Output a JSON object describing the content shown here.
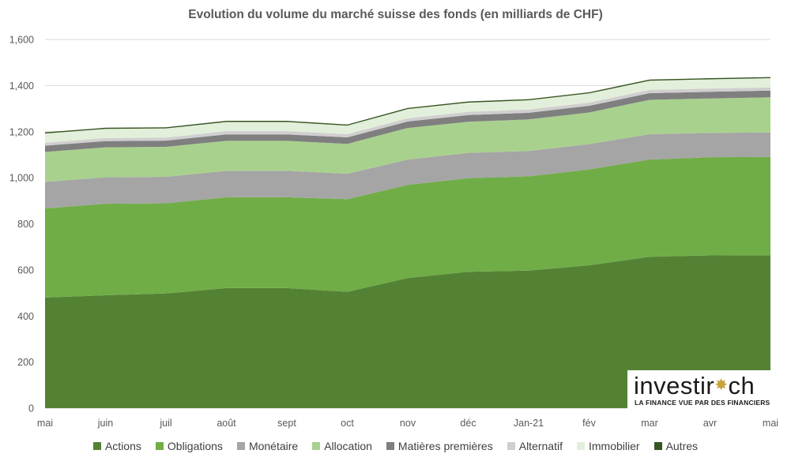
{
  "chart_data": {
    "type": "area",
    "stacked": true,
    "title": "Evolution du volume du marché suisse des fonds (en milliards de CHF)",
    "xlabel": "",
    "ylabel": "",
    "categories": [
      "mai",
      "juin",
      "juil",
      "août",
      "sept",
      "oct",
      "nov",
      "déc",
      "Jan-21",
      "fév",
      "mar",
      "avr",
      "mai"
    ],
    "ylim": [
      0,
      1600
    ],
    "yticks": [
      "0",
      "200",
      "400",
      "600",
      "800",
      "1,000",
      "1,200",
      "1,400",
      "1,600"
    ],
    "grid": true,
    "legend_position": "bottom",
    "series": [
      {
        "name": "Actions",
        "color": "#548235",
        "values": [
          480,
          490,
          498,
          521,
          521,
          505,
          565,
          592,
          597,
          620,
          657,
          663,
          664
        ]
      },
      {
        "name": "Obligations",
        "color": "#70ad47",
        "values": [
          387,
          397,
          391,
          394,
          394,
          402,
          404,
          406,
          409,
          416,
          422,
          426,
          426
        ]
      },
      {
        "name": "Monétaire",
        "color": "#a5a5a5",
        "values": [
          115,
          115,
          115,
          115,
          115,
          110,
          110,
          110,
          110,
          110,
          110,
          106,
          106
        ]
      },
      {
        "name": "Allocation",
        "color": "#a9d18e",
        "values": [
          130,
          130,
          130,
          130,
          130,
          130,
          137,
          135,
          137,
          137,
          149,
          149,
          153
        ]
      },
      {
        "name": "Matières premières",
        "color": "#7f7f7f",
        "values": [
          27,
          27,
          27,
          28,
          28,
          28,
          28,
          29,
          29,
          29,
          29,
          29,
          29
        ]
      },
      {
        "name": "Alternatif",
        "color": "#d0cece",
        "values": [
          13,
          13,
          13,
          14,
          14,
          14,
          14,
          14,
          14,
          14,
          14,
          14,
          14
        ]
      },
      {
        "name": "Immobilier",
        "color": "#e2efda",
        "values": [
          40,
          40,
          40,
          40,
          40,
          37,
          40,
          40,
          40,
          40,
          40,
          40,
          40
        ]
      },
      {
        "name": "Autres",
        "color": "#375623",
        "values": [
          5,
          5,
          5,
          5,
          5,
          5,
          5,
          5,
          5,
          5,
          5,
          5,
          5
        ]
      }
    ]
  },
  "logo": {
    "word_start": "investir",
    "word_end": "ch",
    "tagline": "LA FINANCE  VUE PAR DES FINANCIERS"
  }
}
